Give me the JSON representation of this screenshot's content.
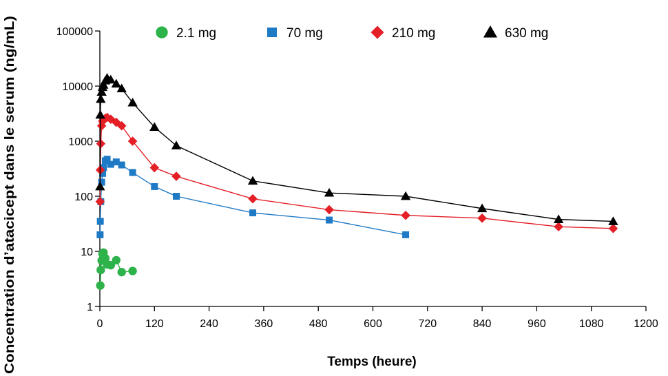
{
  "chart_data": {
    "type": "line",
    "title": "",
    "xlabel": "Temps (heure)",
    "ylabel": "Concentration d’atacicept dans le serum (ng/mL)",
    "xlim": [
      0,
      1200
    ],
    "ylim": [
      1,
      100000
    ],
    "yscale": "log",
    "x_ticks": [
      "0",
      "120",
      "240",
      "360",
      "480",
      "600",
      "720",
      "840",
      "960",
      "1080",
      "1200"
    ],
    "y_ticks": [
      "1",
      "10",
      "100",
      "1000",
      "10000",
      "100000"
    ],
    "legend_position": "top",
    "grid": false,
    "series": [
      {
        "name": "2.1 mg",
        "color": "#2db34a",
        "marker": "circle",
        "points": [
          [
            1,
            2.4
          ],
          [
            2,
            4.6
          ],
          [
            4,
            6.8
          ],
          [
            6,
            9.0
          ],
          [
            8,
            9.5
          ],
          [
            12,
            7.5
          ],
          [
            16,
            5.8
          ],
          [
            24,
            5.6
          ],
          [
            36,
            6.9
          ],
          [
            48,
            4.2
          ],
          [
            72,
            4.4
          ]
        ]
      },
      {
        "name": "70 mg",
        "color": "#1f7ac6",
        "marker": "square",
        "points": [
          [
            0.5,
            20
          ],
          [
            1,
            35
          ],
          [
            2,
            80
          ],
          [
            4,
            180
          ],
          [
            6,
            260
          ],
          [
            8,
            330
          ],
          [
            12,
            440
          ],
          [
            16,
            470
          ],
          [
            24,
            380
          ],
          [
            36,
            420
          ],
          [
            48,
            370
          ],
          [
            72,
            270
          ],
          [
            120,
            150
          ],
          [
            168,
            100
          ],
          [
            336,
            50
          ],
          [
            504,
            37
          ],
          [
            672,
            20
          ]
        ]
      },
      {
        "name": "210 mg",
        "color": "#e41f26",
        "marker": "diamond",
        "points": [
          [
            0.5,
            80
          ],
          [
            1,
            300
          ],
          [
            2,
            900
          ],
          [
            4,
            1900
          ],
          [
            6,
            2300
          ],
          [
            8,
            2400
          ],
          [
            12,
            2600
          ],
          [
            16,
            2700
          ],
          [
            24,
            2500
          ],
          [
            36,
            2200
          ],
          [
            48,
            1900
          ],
          [
            72,
            1000
          ],
          [
            120,
            330
          ],
          [
            168,
            230
          ],
          [
            336,
            90
          ],
          [
            504,
            57
          ],
          [
            672,
            45
          ],
          [
            840,
            40
          ],
          [
            1008,
            28
          ],
          [
            1128,
            26
          ]
        ]
      },
      {
        "name": "630 mg",
        "color": "#000000",
        "marker": "triangle",
        "points": [
          [
            0.5,
            150
          ],
          [
            1,
            3000
          ],
          [
            2,
            5800
          ],
          [
            4,
            7800
          ],
          [
            6,
            9500
          ],
          [
            8,
            10500
          ],
          [
            12,
            12500
          ],
          [
            16,
            14000
          ],
          [
            24,
            13000
          ],
          [
            36,
            11000
          ],
          [
            48,
            9000
          ],
          [
            72,
            5000
          ],
          [
            120,
            1800
          ],
          [
            168,
            830
          ],
          [
            336,
            190
          ],
          [
            504,
            115
          ],
          [
            672,
            100
          ],
          [
            840,
            60
          ],
          [
            1008,
            38
          ],
          [
            1128,
            35
          ]
        ]
      }
    ]
  }
}
